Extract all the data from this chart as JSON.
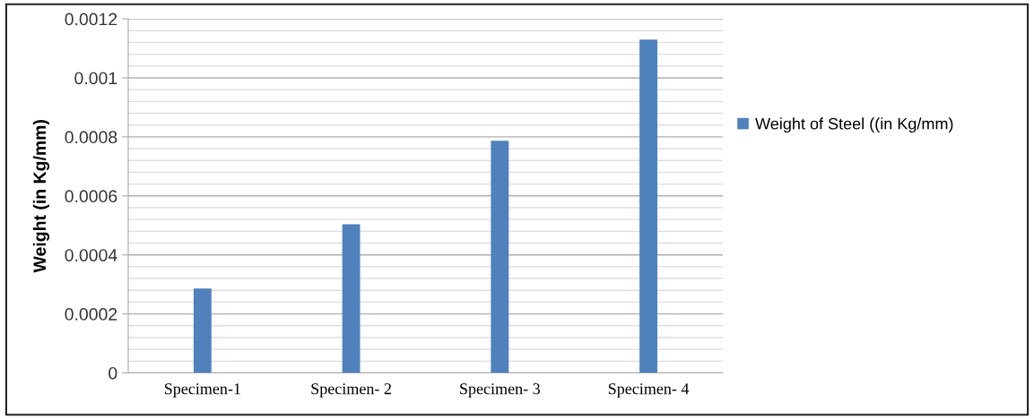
{
  "chart_data": {
    "type": "bar",
    "ylabel": "Weight (in Kg/mm)",
    "categories": [
      "Specimen-1",
      "Specimen- 2",
      "Specimen- 3",
      "Specimen- 4"
    ],
    "series": [
      {
        "name": "Weight of Steel ((in Kg/mm)",
        "color": "#4f81bd",
        "values": [
          0.000286,
          0.000504,
          0.000787,
          0.00113
        ]
      }
    ],
    "ylim": [
      0,
      0.0012
    ],
    "yticks": [
      {
        "value": 0,
        "label": "0"
      },
      {
        "value": 0.0002,
        "label": "0.0002"
      },
      {
        "value": 0.0004,
        "label": "0.0004"
      },
      {
        "value": 0.0006,
        "label": "0.0006"
      },
      {
        "value": 0.0008,
        "label": "0.0008"
      },
      {
        "value": 0.001,
        "label": "0.001"
      },
      {
        "value": 0.0012,
        "label": "0.0012"
      }
    ],
    "grid": "y",
    "legend": "right"
  }
}
